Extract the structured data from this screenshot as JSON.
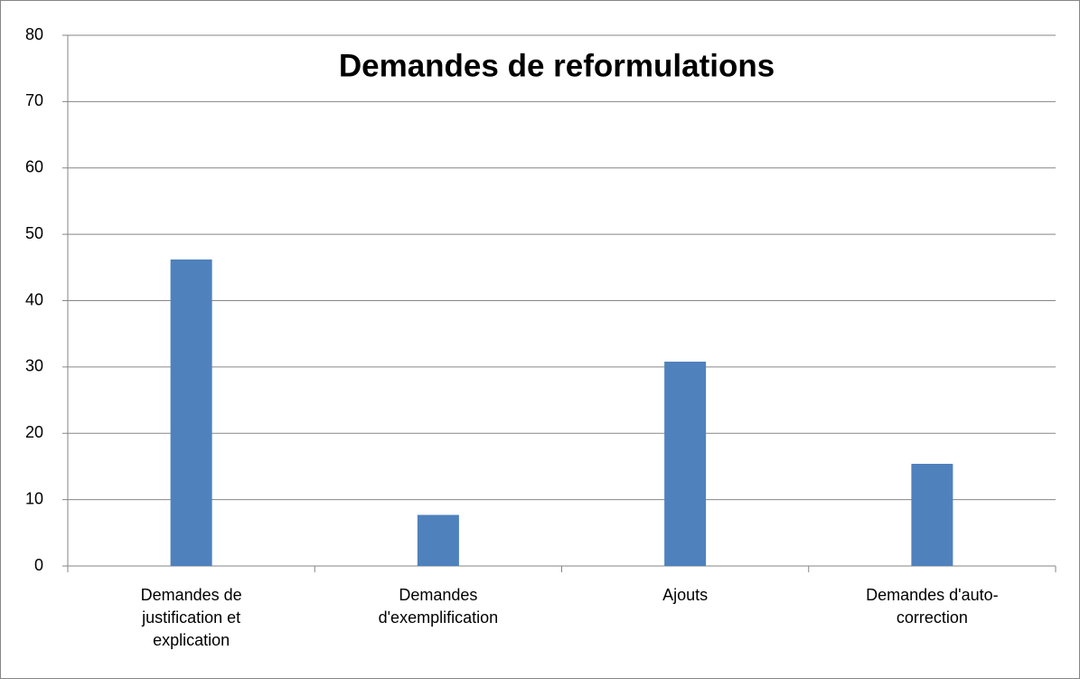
{
  "chart_data": {
    "type": "bar",
    "title": "Demandes de reformulations",
    "categories": [
      "Demandes de justification et explication",
      "Demandes d'exemplification",
      "Ajouts",
      "Demandes d'auto-correction"
    ],
    "values": [
      46.2,
      7.7,
      30.8,
      15.4
    ],
    "color": "#4f81bd",
    "ylim": [
      0,
      80
    ],
    "yticks": [
      0,
      10,
      20,
      30,
      40,
      50,
      60,
      70,
      80
    ],
    "grid": true
  }
}
